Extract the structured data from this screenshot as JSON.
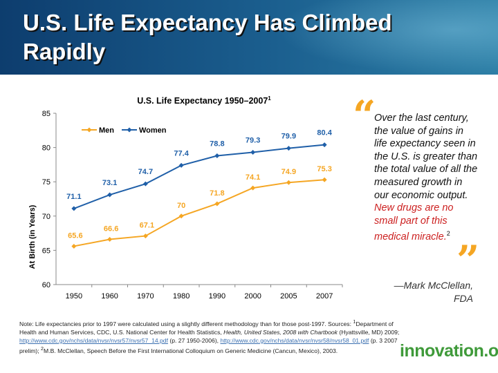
{
  "slide": {
    "title": "U.S. Life Expectancy Has Climbed Rapidly"
  },
  "chart_data": {
    "type": "line",
    "title": "U.S. Life Expectancy 1950–2007",
    "title_superscript": "1",
    "ylabel": "At Birth (in Years)",
    "xlabel": "",
    "categories": [
      "1950",
      "1960",
      "1970",
      "1980",
      "1990",
      "2000",
      "2005",
      "2007"
    ],
    "ylim": [
      60,
      85
    ],
    "yticks": [
      60,
      65,
      70,
      75,
      80,
      85
    ],
    "grid": false,
    "legend_position": "top-left",
    "series": [
      {
        "name": "Men",
        "color": "#f5a623",
        "values": [
          65.6,
          66.6,
          67.1,
          70,
          71.8,
          74.1,
          74.9,
          75.3
        ],
        "labels": [
          "65.6",
          "66.6",
          "67.1",
          "70",
          "71.8",
          "74.1",
          "74.9",
          "75.3"
        ]
      },
      {
        "name": "Women",
        "color": "#1f5fa8",
        "values": [
          71.1,
          73.1,
          74.7,
          77.4,
          78.8,
          79.3,
          79.9,
          80.4
        ],
        "labels": [
          "71.1",
          "73.1",
          "74.7",
          "77.4",
          "78.8",
          "79.3",
          "79.9",
          "80.4"
        ]
      }
    ]
  },
  "quote": {
    "open_mark": "“",
    "close_mark": "”",
    "text_main": "Over the last century, the value of gains in life expectancy seen in the U.S. is greater than the total value of all the measured growth in our economic output.",
    "text_highlight": "New drugs are no small part of this medical miracle.",
    "superscript": "2",
    "attribution": "—Mark McClellan, FDA"
  },
  "note": {
    "line1": "Note: Life expectancies prior to 1997 were calculated using a slightly different methodology than for those post-1997.",
    "sources_label": "Sources: ",
    "sup1": "1",
    "source1_a": "Department of Health and Human Services, CDC, U.S. National Center for Health Statistics, ",
    "source1_title": "Health, United States, 2008 with Chartbook",
    "source1_b": " (Hyattsville, MD) 2009; ",
    "link1": "http://www.cdc.gov/nchs/data/nvsr/nvsr57/nvsr57_14.pdf",
    "source1_c": " (p. 27 1950-2006), ",
    "link2": "http://www.cdc.gov/nchs/data/nvsr/nvsr58/nvsr58_01.pdf",
    "source1_d": " (p. 3 2007 prelim); ",
    "sup2": "2",
    "source2": "M.B. McClellan, Speech Before the First International Colloquium on Generic Medicine (Cancun, Mexico), 2003."
  },
  "logo": {
    "text": "innovation.org",
    "color": "#3f9a3a"
  }
}
